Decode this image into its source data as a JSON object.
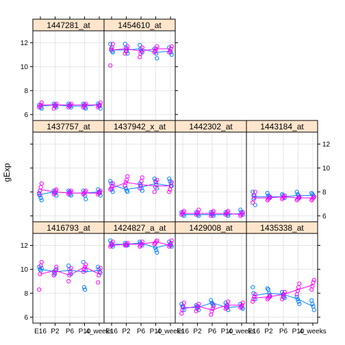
{
  "chart_data": {
    "type": "lattice-scatter-line",
    "ylabel": "gExp",
    "ylim": [
      5.5,
      13
    ],
    "yticks": [
      6,
      8,
      10,
      12
    ],
    "x_categories": [
      "E16",
      "P2",
      "P6",
      "P10",
      "4_weeks"
    ],
    "x_tick_labels": [
      "E16",
      "P2",
      "P6",
      "P10",
      "4_weeks"
    ],
    "colors": {
      "series_a": "#0080ff",
      "series_b": "#ff00ff",
      "strip": "#ffe5cc",
      "grid": "#e6e6e6"
    },
    "panels": [
      {
        "id": "p1416793",
        "strip": "1416793_at",
        "row": 0,
        "col": 0,
        "mean_a": [
          10.0,
          9.8,
          9.9,
          9.8,
          9.9
        ],
        "mean_b": [
          9.6,
          9.9,
          9.5,
          10.2,
          9.6
        ],
        "points_a": [
          [
            10.2,
            10.0,
            9.9,
            10.1
          ],
          [
            9.8,
            9.6,
            9.9,
            10.0
          ],
          [
            10.3,
            10.0,
            9.8,
            9.6
          ],
          [
            10.6,
            8.5,
            8.3,
            9.9
          ],
          [
            10.2,
            10.0,
            9.8,
            9.7
          ]
        ],
        "points_b": [
          [
            10.6,
            10.3,
            9.6,
            8.3
          ],
          [
            10.2,
            9.9,
            9.7,
            9.5
          ],
          [
            10.1,
            9.8,
            9.5,
            9.0
          ],
          [
            10.4,
            10.2,
            10.0,
            9.8
          ],
          [
            10.1,
            9.8,
            9.5,
            8.9
          ]
        ]
      },
      {
        "id": "p1424827",
        "strip": "1424827_a_at",
        "row": 0,
        "col": 1,
        "mean_a": [
          12.1,
          12.1,
          12.2,
          11.8,
          12.1
        ],
        "mean_b": [
          12.0,
          12.1,
          12.1,
          12.3,
          12.0
        ],
        "points_a": [
          [
            12.4,
            12.2,
            12.0,
            11.9
          ],
          [
            12.2,
            12.1,
            12.0,
            12.0
          ],
          [
            12.3,
            12.2,
            12.1,
            12.0
          ],
          [
            12.1,
            11.8,
            11.6,
            11.4
          ],
          [
            12.3,
            12.1,
            12.0,
            11.9
          ]
        ],
        "points_b": [
          [
            12.3,
            12.1,
            12.0,
            11.9
          ],
          [
            12.2,
            12.1,
            12.0,
            12.0
          ],
          [
            12.3,
            12.1,
            12.0,
            11.9
          ],
          [
            12.4,
            12.3,
            12.2,
            12.1
          ],
          [
            12.4,
            12.2,
            12.0,
            11.9
          ]
        ]
      },
      {
        "id": "p1429008",
        "strip": "1429008_at",
        "row": 0,
        "col": 2,
        "mean_a": [
          6.8,
          6.8,
          7.2,
          6.8,
          6.9
        ],
        "mean_b": [
          6.7,
          6.9,
          6.6,
          7.0,
          7.0
        ],
        "points_a": [
          [
            7.1,
            6.9,
            6.8,
            6.6
          ],
          [
            7.0,
            6.9,
            6.8,
            6.6
          ],
          [
            7.4,
            7.2,
            7.1,
            6.9
          ],
          [
            7.2,
            7.0,
            6.8,
            6.6
          ],
          [
            7.1,
            6.9,
            6.8,
            6.7
          ]
        ],
        "points_b": [
          [
            7.2,
            6.9,
            6.6,
            6.3
          ],
          [
            7.1,
            6.9,
            6.7,
            6.5
          ],
          [
            7.0,
            6.7,
            6.5,
            6.2
          ],
          [
            7.3,
            7.0,
            6.8,
            6.7
          ],
          [
            7.2,
            7.0,
            6.9,
            6.8
          ]
        ]
      },
      {
        "id": "p1435338",
        "strip": "1435338_at",
        "row": 0,
        "col": 3,
        "mean_a": [
          7.8,
          8.0,
          7.9,
          7.5,
          6.9
        ],
        "mean_b": [
          7.6,
          7.7,
          7.9,
          8.3,
          8.7
        ],
        "points_a": [
          [
            8.5,
            8.0,
            7.7,
            7.5
          ],
          [
            8.4,
            8.3,
            8.0,
            7.7
          ],
          [
            8.1,
            7.9,
            7.7,
            7.6
          ],
          [
            7.7,
            7.5,
            7.3,
            7.1
          ],
          [
            7.4,
            7.1,
            6.9,
            6.6
          ]
        ],
        "points_b": [
          [
            7.9,
            7.7,
            7.5,
            7.3
          ],
          [
            7.8,
            7.7,
            7.6,
            7.5
          ],
          [
            8.1,
            7.9,
            7.7,
            7.5
          ],
          [
            8.8,
            8.5,
            8.2,
            7.9
          ],
          [
            9.1,
            8.9,
            8.6,
            8.3
          ]
        ]
      },
      {
        "id": "p1437757",
        "strip": "1437757_at",
        "row": 1,
        "col": 0,
        "mean_a": [
          7.8,
          8.0,
          7.9,
          7.9,
          8.0
        ],
        "mean_b": [
          8.2,
          8.0,
          7.9,
          7.9,
          7.9
        ],
        "points_a": [
          [
            7.9,
            7.7,
            7.5,
            7.3
          ],
          [
            8.1,
            8.0,
            7.9,
            7.7
          ],
          [
            8.1,
            8.0,
            7.8,
            7.7
          ],
          [
            8.1,
            7.9,
            7.7,
            7.4
          ],
          [
            8.2,
            8.0,
            7.9,
            7.7
          ]
        ],
        "points_b": [
          [
            8.7,
            8.4,
            8.1,
            7.8
          ],
          [
            8.2,
            8.1,
            7.9,
            7.8
          ],
          [
            8.1,
            8.0,
            7.9,
            7.8
          ],
          [
            8.1,
            8.0,
            7.9,
            7.8
          ],
          [
            8.1,
            8.0,
            7.9,
            7.8
          ]
        ]
      },
      {
        "id": "p1437942",
        "strip": "1437942_x_at",
        "row": 1,
        "col": 1,
        "mean_a": [
          8.6,
          8.2,
          8.4,
          8.7,
          8.5
        ],
        "mean_b": [
          8.3,
          8.8,
          8.6,
          8.5,
          8.5
        ],
        "points_a": [
          [
            8.9,
            8.7,
            8.2,
            8.0
          ],
          [
            8.5,
            8.3,
            8.1,
            8.0
          ],
          [
            8.7,
            8.5,
            8.3,
            8.1
          ],
          [
            9.1,
            8.9,
            8.6,
            8.3
          ],
          [
            9.1,
            8.9,
            8.7,
            8.5
          ]
        ],
        "points_b": [
          [
            8.7,
            8.5,
            8.3,
            8.2
          ],
          [
            9.3,
            9.0,
            8.8,
            8.5
          ],
          [
            9.2,
            8.9,
            8.6,
            8.3
          ],
          [
            9.0,
            8.8,
            8.4,
            8.0
          ],
          [
            8.8,
            8.5,
            8.2,
            8.0
          ]
        ]
      },
      {
        "id": "p1442302",
        "strip": "1442302_at",
        "row": 1,
        "col": 2,
        "mean_a": [
          6.1,
          6.1,
          6.1,
          6.1,
          6.2
        ],
        "mean_b": [
          6.2,
          6.2,
          6.2,
          6.2,
          6.1
        ],
        "points_a": [
          [
            6.3,
            6.2,
            6.1,
            6.0
          ],
          [
            6.3,
            6.2,
            6.1,
            6.0
          ],
          [
            6.3,
            6.2,
            6.1,
            6.0
          ],
          [
            6.3,
            6.2,
            6.1,
            6.0
          ],
          [
            6.5,
            6.3,
            6.2,
            6.1
          ]
        ],
        "points_b": [
          [
            6.4,
            6.3,
            6.2,
            6.1
          ],
          [
            6.5,
            6.3,
            6.2,
            6.1
          ],
          [
            6.4,
            6.3,
            6.1,
            6.0
          ],
          [
            6.4,
            6.3,
            6.2,
            6.1
          ],
          [
            6.3,
            6.2,
            6.1,
            6.0
          ]
        ]
      },
      {
        "id": "p1443184",
        "strip": "1443184_at",
        "row": 1,
        "col": 3,
        "mean_a": [
          7.6,
          7.6,
          7.6,
          7.7,
          7.7
        ],
        "mean_b": [
          7.5,
          7.5,
          7.6,
          7.5,
          7.5
        ],
        "points_a": [
          [
            8.0,
            7.7,
            7.5,
            6.9
          ],
          [
            7.9,
            7.7,
            7.6,
            7.5
          ],
          [
            7.8,
            7.7,
            7.6,
            7.5
          ],
          [
            8.0,
            7.8,
            7.7,
            7.5
          ],
          [
            7.9,
            7.8,
            7.7,
            7.6
          ]
        ],
        "points_b": [
          [
            8.0,
            7.7,
            7.4,
            7.1
          ],
          [
            7.6,
            7.5,
            7.4,
            7.3
          ],
          [
            7.7,
            7.6,
            7.5,
            7.4
          ],
          [
            7.6,
            7.5,
            7.4,
            7.3
          ],
          [
            7.6,
            7.5,
            7.4,
            7.3
          ]
        ]
      },
      {
        "id": "p1447281",
        "strip": "1447281_at",
        "row": 2,
        "col": 0,
        "mean_a": [
          6.7,
          6.8,
          6.7,
          6.7,
          6.8
        ],
        "mean_b": [
          6.8,
          6.8,
          6.8,
          6.8,
          6.8
        ],
        "points_a": [
          [
            6.8,
            6.7,
            6.6,
            6.5
          ],
          [
            6.9,
            6.8,
            6.7,
            6.6
          ],
          [
            6.9,
            6.8,
            6.7,
            6.6
          ],
          [
            6.9,
            6.8,
            6.6,
            6.5
          ],
          [
            6.9,
            6.8,
            6.7,
            6.5
          ]
        ],
        "points_b": [
          [
            7.0,
            6.8,
            6.7,
            6.6
          ],
          [
            6.9,
            6.8,
            6.7,
            6.5
          ],
          [
            6.9,
            6.8,
            6.7,
            6.6
          ],
          [
            6.9,
            6.8,
            6.7,
            6.6
          ],
          [
            7.0,
            6.8,
            6.7,
            6.6
          ]
        ]
      },
      {
        "id": "p1454610",
        "strip": "1454610_at",
        "row": 2,
        "col": 1,
        "mean_a": [
          11.4,
          11.4,
          11.5,
          11.2,
          11.3
        ],
        "mean_b": [
          11.4,
          11.5,
          11.3,
          11.5,
          11.5
        ],
        "points_a": [
          [
            11.9,
            11.5,
            11.3,
            11.2
          ],
          [
            11.9,
            11.6,
            11.3,
            11.1
          ],
          [
            11.8,
            11.5,
            11.3,
            11.2
          ],
          [
            11.5,
            11.3,
            11.1,
            10.7
          ],
          [
            11.6,
            11.3,
            11.2,
            11.0
          ]
        ],
        "points_b": [
          [
            11.9,
            11.6,
            11.4,
            10.1
          ],
          [
            11.7,
            11.5,
            11.3,
            11.1
          ],
          [
            11.6,
            11.3,
            11.1,
            10.8
          ],
          [
            11.7,
            11.5,
            11.3,
            11.2
          ],
          [
            11.7,
            11.5,
            11.3,
            11.2
          ]
        ]
      }
    ]
  }
}
